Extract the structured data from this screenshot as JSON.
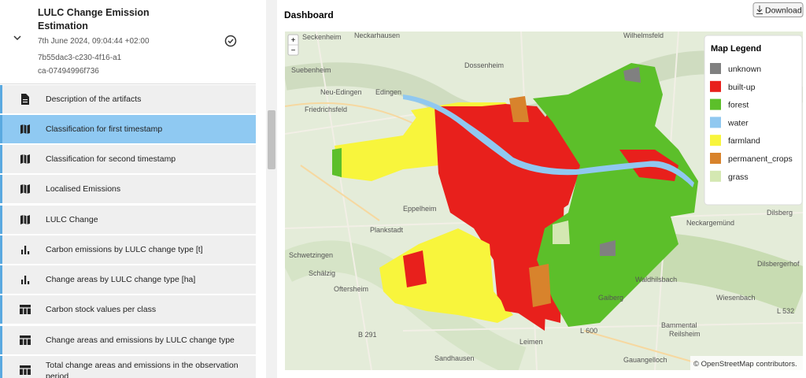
{
  "sidebar": {
    "title": "LULC Change Emission Estimation",
    "date": "7th June 2024, 09:04:44 +02:00",
    "id": "7b55dac3-c230-4f16-a1ca-07494996f736",
    "items": [
      "Description of the artifacts",
      "Classification for first timestamp",
      "Classification for second timestamp",
      "Localised Emissions",
      "LULC Change",
      "Carbon emissions by LULC change type [t]",
      "Change areas by LULC change type [ha]",
      "Carbon stock values per class",
      "Change areas and emissions by LULC change type",
      "Total change areas and emissions in the observation period"
    ]
  },
  "dashboard": {
    "title": "Dashboard",
    "download": "Download",
    "map": {
      "zoom_in": "+",
      "zoom_out": "−",
      "legend": {
        "title": "Map Legend",
        "entries": [
          {
            "name": "unknown",
            "color": "#808080"
          },
          {
            "name": "built-up",
            "color": "#e8201c"
          },
          {
            "name": "forest",
            "color": "#5cbf2a"
          },
          {
            "name": "water",
            "color": "#90c8f0"
          },
          {
            "name": "farmland",
            "color": "#f8f53c"
          },
          {
            "name": "permanent_crops",
            "color": "#d8832c"
          },
          {
            "name": "grass",
            "color": "#d4e8b2"
          }
        ]
      },
      "places": [
        "Seckenheim",
        "Neckarhausen",
        "Wilhelmsfeld",
        "Suebenheim",
        "Dossenheim",
        "Neu-Edingen",
        "Edingen",
        "Friedrichsfeld",
        "Eppelheim",
        "Plankstadt",
        "Schwetzingen",
        "Schälzig",
        "Oftersheim",
        "Neckargemünd",
        "Dilsberg",
        "Dilsbergerhof",
        "Waldhilsbach",
        "Gaiberg",
        "Wiesenbach",
        "Bammental",
        "Reilsheim",
        "Leimen",
        "Sandhausen",
        "Gauangelloch",
        "B 291",
        "L 600",
        "L 532"
      ],
      "attribution": "© OpenStreetMap contributors."
    }
  }
}
